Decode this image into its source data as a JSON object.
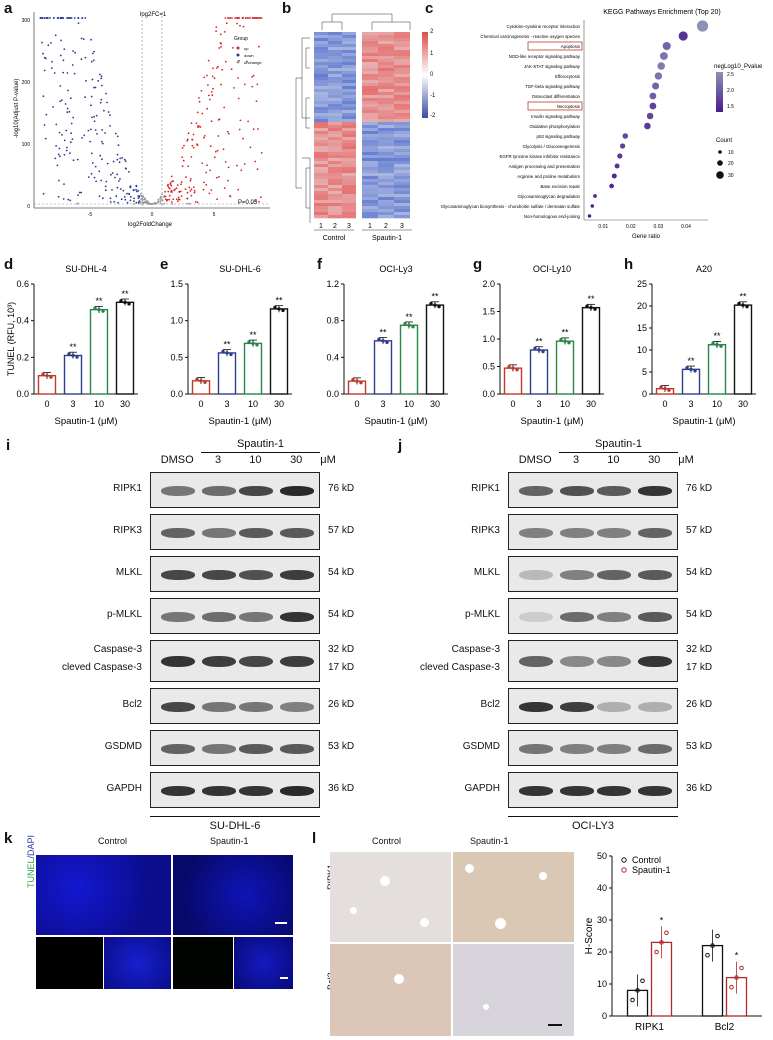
{
  "panels": {
    "a": "a",
    "b": "b",
    "c": "c",
    "d": "d",
    "e": "e",
    "f": "f",
    "g": "g",
    "h": "h",
    "i": "i",
    "j": "j",
    "k": "k",
    "l": "l"
  },
  "volcano": {
    "ylabel": "-log10(Adjust P-value)",
    "xlabel": "log2FoldChange",
    "fc_label": "log2FC=1",
    "p_label": "P=0.05",
    "legend_title": "Group",
    "legend": [
      "up",
      "down",
      "unchange"
    ],
    "yticks": [
      "0",
      "100",
      "200",
      "300"
    ],
    "xticks": [
      "-5",
      "0",
      "5"
    ],
    "colors": {
      "up": "#d62728",
      "down": "#2b3a8c",
      "unchange": "#9a9a9a"
    }
  },
  "heatmap": {
    "groups": [
      "Control",
      "Spautin-1"
    ],
    "lanes": [
      "1",
      "2",
      "3",
      "1",
      "2",
      "3"
    ],
    "scale": [
      "2",
      "1",
      "0",
      "-1",
      "-2"
    ]
  },
  "kegg": {
    "title": "KEGG Pathways Enrichment (Top 20)",
    "xlabel": "Gene ratio",
    "xticks": [
      "0.01",
      "0.02",
      "0.03",
      "0.04"
    ],
    "legend_color_title": "negLog10_Pvalue",
    "legend_color_ticks": [
      "2.5",
      "2.0",
      "1.5"
    ],
    "legend_size_title": "Count",
    "legend_size_ticks": [
      "10",
      "20",
      "30"
    ],
    "pathways": [
      "Cytokine-cytokine receptor interaction",
      "Chemical carcinogenesis - reactive oxygen species",
      "Apoptosis",
      "NOD-like receptor signaling pathway",
      "JAK-STAT signaling pathway",
      "Efferocytosis",
      "TGF-beta signaling pathway",
      "Osteoclast differentiation",
      "Necroptosis",
      "Insulin signaling pathway",
      "Oxidative phosphorylation",
      "p53 signaling pathway",
      "Glycolysis / Gluconeogenesis",
      "EGFR tyrosine kinase inhibitor resistance",
      "Antigen processing and presentation",
      "Arginine and proline metabolism",
      "Base excision repair",
      "Glycosaminoglycan degradation",
      "Glycosaminoglycan biosynthesis - chondroitin sulfate / dermatan sulfate",
      "Non-homologous end-joining"
    ],
    "gene_ratio": [
      0.046,
      0.039,
      0.033,
      0.032,
      0.031,
      0.03,
      0.029,
      0.028,
      0.028,
      0.027,
      0.026,
      0.018,
      0.017,
      0.016,
      0.015,
      0.014,
      0.013,
      0.007,
      0.006,
      0.005
    ],
    "neglog10p": [
      2.6,
      1.3,
      2.0,
      2.2,
      2.3,
      2.2,
      2.0,
      1.9,
      1.5,
      1.6,
      1.4,
      1.6,
      1.5,
      1.4,
      1.3,
      1.2,
      1.2,
      1.1,
      1.0,
      1.0
    ],
    "count": [
      34,
      26,
      22,
      21,
      20,
      19,
      18,
      17,
      17,
      16,
      16,
      12,
      11,
      11,
      10,
      10,
      9,
      5,
      4,
      4
    ],
    "highlighted": [
      "Apoptosis",
      "Necroptosis"
    ]
  },
  "chart_data": [
    {
      "type": "bar",
      "title": "SU-DHL-4",
      "categories": [
        "0",
        "3",
        "10",
        "30"
      ],
      "values": [
        0.1,
        0.21,
        0.46,
        0.5
      ],
      "ylabel": "TUNEL (RFU, 10³)",
      "xlabel": "Spautin-1 (μM)",
      "ylim": [
        0,
        0.6
      ],
      "yticks": [
        "0.0",
        "0.2",
        "0.4",
        "0.6"
      ],
      "sig": [
        "",
        "**",
        "**",
        "**"
      ],
      "colors": [
        "#c0392b",
        "#2c3e8c",
        "#27864a",
        "#111111"
      ]
    },
    {
      "type": "bar",
      "title": "SU-DHL-6",
      "categories": [
        "0",
        "3",
        "10",
        "30"
      ],
      "values": [
        0.18,
        0.56,
        0.69,
        1.16
      ],
      "xlabel": "Spautin-1 (μM)",
      "ylim": [
        0,
        1.5
      ],
      "yticks": [
        "0.0",
        "0.5",
        "1.0",
        "1.5"
      ],
      "sig": [
        "",
        "**",
        "**",
        "**"
      ],
      "colors": [
        "#c0392b",
        "#2c3e8c",
        "#27864a",
        "#111111"
      ]
    },
    {
      "type": "bar",
      "title": "OCI-Ly3",
      "categories": [
        "0",
        "3",
        "10",
        "30"
      ],
      "values": [
        0.14,
        0.58,
        0.75,
        0.97
      ],
      "xlabel": "Spautin-1 (μM)",
      "ylim": [
        0,
        1.2
      ],
      "yticks": [
        "0.0",
        "0.4",
        "0.8",
        "1.2"
      ],
      "sig": [
        "",
        "**",
        "**",
        "**"
      ],
      "colors": [
        "#c0392b",
        "#2c3e8c",
        "#27864a",
        "#111111"
      ]
    },
    {
      "type": "bar",
      "title": "OCI-Ly10",
      "categories": [
        "0",
        "3",
        "10",
        "30"
      ],
      "values": [
        0.47,
        0.8,
        0.96,
        1.57
      ],
      "xlabel": "Spautin-1 (μM)",
      "ylim": [
        0,
        2.0
      ],
      "yticks": [
        "0.0",
        "0.5",
        "1.0",
        "1.5",
        "2.0"
      ],
      "sig": [
        "",
        "**",
        "**",
        "**"
      ],
      "colors": [
        "#c0392b",
        "#2c3e8c",
        "#27864a",
        "#111111"
      ]
    },
    {
      "type": "bar",
      "title": "A20",
      "categories": [
        "0",
        "3",
        "10",
        "30"
      ],
      "values": [
        1.2,
        5.6,
        11.2,
        20.2
      ],
      "xlabel": "Spautin-1 (μM)",
      "ylim": [
        0,
        25
      ],
      "yticks": [
        "0",
        "5",
        "10",
        "15",
        "20",
        "25"
      ],
      "sig": [
        "",
        "**",
        "**",
        "**"
      ],
      "colors": [
        "#c0392b",
        "#2c3e8c",
        "#27864a",
        "#111111"
      ]
    },
    {
      "type": "bar",
      "categories": [
        "RIPK1",
        "Bcl2"
      ],
      "series": [
        {
          "name": "Control",
          "values": [
            8,
            22
          ]
        },
        {
          "name": "Spautin-1",
          "values": [
            23,
            12
          ]
        }
      ],
      "ylabel": "H-Score",
      "ylim": [
        0,
        50
      ],
      "yticks": [
        "0",
        "10",
        "20",
        "30",
        "40",
        "50"
      ],
      "sig": [
        [
          "",
          "*"
        ],
        [
          "",
          "*"
        ]
      ],
      "legend": "top"
    }
  ],
  "blot_i": {
    "header_group": "Spautin-1",
    "lanes": [
      "DMSO",
      "3",
      "10",
      "30",
      "μM"
    ],
    "cell_line": "SU-DHL-6",
    "rows": [
      {
        "label": "RIPK1",
        "kd": "76 kD",
        "intensity": [
          0.6,
          0.65,
          0.85,
          1.0
        ]
      },
      {
        "label": "RIPK3",
        "kd": "57 kD",
        "intensity": [
          0.7,
          0.6,
          0.75,
          0.75
        ]
      },
      {
        "label": "MLKL",
        "kd": "54 kD",
        "intensity": [
          0.85,
          0.85,
          0.8,
          0.9
        ]
      },
      {
        "label": "p-MLKL",
        "kd": "54 kD",
        "intensity": [
          0.6,
          0.65,
          0.6,
          0.95
        ]
      },
      {
        "label": "Caspase-3",
        "label2": "cleved Caspase-3",
        "kd": "32 kD",
        "kd2": "17 kD",
        "intensity": [
          0.95,
          0.9,
          0.85,
          0.9
        ]
      },
      {
        "label": "Bcl2",
        "kd": "26 kD",
        "intensity": [
          0.85,
          0.6,
          0.6,
          0.55
        ]
      },
      {
        "label": "GSDMD",
        "kd": "53 kD",
        "intensity": [
          0.7,
          0.6,
          0.75,
          0.75
        ]
      },
      {
        "label": "GAPDH",
        "kd": "36 kD",
        "intensity": [
          0.95,
          0.95,
          0.95,
          1.0
        ]
      }
    ]
  },
  "blot_j": {
    "header_group": "Spautin-1",
    "lanes": [
      "DMSO",
      "3",
      "10",
      "30",
      "μM"
    ],
    "cell_line": "OCI-LY3",
    "rows": [
      {
        "label": "RIPK1",
        "kd": "76 kD",
        "intensity": [
          0.7,
          0.8,
          0.75,
          0.95
        ]
      },
      {
        "label": "RIPK3",
        "kd": "57 kD",
        "intensity": [
          0.55,
          0.55,
          0.55,
          0.7
        ]
      },
      {
        "label": "MLKL",
        "kd": "54 kD",
        "intensity": [
          0.25,
          0.55,
          0.7,
          0.75
        ]
      },
      {
        "label": "p-MLKL",
        "kd": "54 kD",
        "intensity": [
          0.15,
          0.65,
          0.55,
          0.75
        ]
      },
      {
        "label": "Caspase-3",
        "label2": "cleved Caspase-3",
        "kd": "32 kD",
        "kd2": "17 kD",
        "intensity": [
          0.7,
          0.5,
          0.5,
          0.95
        ]
      },
      {
        "label": "Bcl2",
        "kd": "26 kD",
        "intensity": [
          0.95,
          0.9,
          0.3,
          0.3
        ]
      },
      {
        "label": "GSDMD",
        "kd": "53 kD",
        "intensity": [
          0.6,
          0.55,
          0.55,
          0.65
        ]
      },
      {
        "label": "GAPDH",
        "kd": "36 kD",
        "intensity": [
          0.95,
          0.95,
          0.95,
          0.95
        ]
      }
    ]
  },
  "tunel": {
    "ylabel_a": "TUNEL",
    "ylabel_b": "/DAPI",
    "groups": [
      "Control",
      "Spautin-1"
    ]
  },
  "ihc": {
    "groups": [
      "Control",
      "Spautin-1"
    ],
    "rows": [
      "RIPK1",
      "Bcl2"
    ]
  }
}
